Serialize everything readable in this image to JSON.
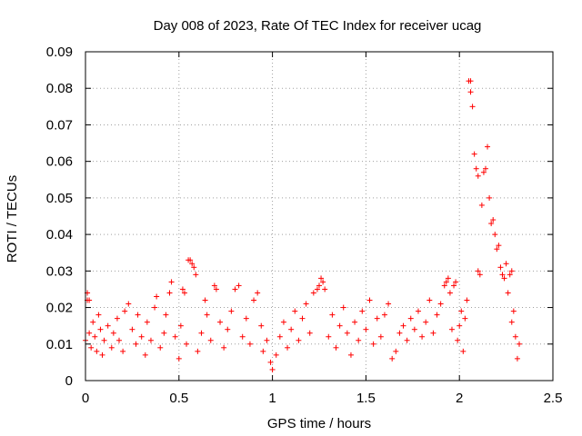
{
  "chart_data": {
    "type": "scatter",
    "title": "Day 008 of 2023, Rate Of TEC Index for receiver ucag",
    "xlabel": "GPS time / hours",
    "ylabel": "ROTI / TECUs",
    "xlim": [
      0,
      2.5
    ],
    "ylim": [
      0,
      0.09
    ],
    "x_ticks": [
      "0",
      "0.5",
      "1",
      "1.5",
      "2",
      "2.5"
    ],
    "y_ticks": [
      "0",
      "0.01",
      "0.02",
      "0.03",
      "0.04",
      "0.05",
      "0.06",
      "0.07",
      "0.08",
      "0.09"
    ],
    "grid": true,
    "marker": "+",
    "color": "#ff0000",
    "series": [
      {
        "name": "ROTI",
        "points": [
          [
            0.0,
            0.011
          ],
          [
            0.01,
            0.022
          ],
          [
            0.01,
            0.024
          ],
          [
            0.02,
            0.022
          ],
          [
            0.02,
            0.013
          ],
          [
            0.03,
            0.009
          ],
          [
            0.04,
            0.016
          ],
          [
            0.05,
            0.012
          ],
          [
            0.06,
            0.008
          ],
          [
            0.07,
            0.018
          ],
          [
            0.08,
            0.014
          ],
          [
            0.09,
            0.007
          ],
          [
            0.1,
            0.011
          ],
          [
            0.12,
            0.015
          ],
          [
            0.14,
            0.009
          ],
          [
            0.15,
            0.013
          ],
          [
            0.17,
            0.017
          ],
          [
            0.18,
            0.011
          ],
          [
            0.2,
            0.008
          ],
          [
            0.21,
            0.019
          ],
          [
            0.23,
            0.021
          ],
          [
            0.25,
            0.014
          ],
          [
            0.27,
            0.01
          ],
          [
            0.28,
            0.018
          ],
          [
            0.3,
            0.012
          ],
          [
            0.32,
            0.007
          ],
          [
            0.33,
            0.016
          ],
          [
            0.35,
            0.011
          ],
          [
            0.37,
            0.02
          ],
          [
            0.38,
            0.023
          ],
          [
            0.4,
            0.009
          ],
          [
            0.42,
            0.013
          ],
          [
            0.43,
            0.018
          ],
          [
            0.45,
            0.024
          ],
          [
            0.46,
            0.027
          ],
          [
            0.48,
            0.012
          ],
          [
            0.5,
            0.006
          ],
          [
            0.51,
            0.015
          ],
          [
            0.52,
            0.025
          ],
          [
            0.53,
            0.024
          ],
          [
            0.54,
            0.01
          ],
          [
            0.55,
            0.033
          ],
          [
            0.56,
            0.033
          ],
          [
            0.57,
            0.032
          ],
          [
            0.58,
            0.031
          ],
          [
            0.59,
            0.029
          ],
          [
            0.6,
            0.008
          ],
          [
            0.62,
            0.013
          ],
          [
            0.64,
            0.022
          ],
          [
            0.65,
            0.018
          ],
          [
            0.67,
            0.011
          ],
          [
            0.69,
            0.026
          ],
          [
            0.7,
            0.025
          ],
          [
            0.72,
            0.016
          ],
          [
            0.74,
            0.009
          ],
          [
            0.76,
            0.014
          ],
          [
            0.78,
            0.019
          ],
          [
            0.8,
            0.025
          ],
          [
            0.82,
            0.026
          ],
          [
            0.84,
            0.012
          ],
          [
            0.86,
            0.017
          ],
          [
            0.88,
            0.01
          ],
          [
            0.9,
            0.022
          ],
          [
            0.92,
            0.024
          ],
          [
            0.94,
            0.015
          ],
          [
            0.95,
            0.008
          ],
          [
            0.97,
            0.011
          ],
          [
            0.99,
            0.005
          ],
          [
            1.0,
            0.003
          ],
          [
            1.02,
            0.007
          ],
          [
            1.04,
            0.012
          ],
          [
            1.06,
            0.016
          ],
          [
            1.08,
            0.009
          ],
          [
            1.1,
            0.014
          ],
          [
            1.12,
            0.019
          ],
          [
            1.14,
            0.011
          ],
          [
            1.16,
            0.017
          ],
          [
            1.18,
            0.021
          ],
          [
            1.2,
            0.013
          ],
          [
            1.22,
            0.024
          ],
          [
            1.24,
            0.025
          ],
          [
            1.25,
            0.026
          ],
          [
            1.26,
            0.028
          ],
          [
            1.27,
            0.027
          ],
          [
            1.28,
            0.025
          ],
          [
            1.3,
            0.012
          ],
          [
            1.32,
            0.018
          ],
          [
            1.34,
            0.009
          ],
          [
            1.36,
            0.015
          ],
          [
            1.38,
            0.02
          ],
          [
            1.4,
            0.013
          ],
          [
            1.42,
            0.007
          ],
          [
            1.44,
            0.016
          ],
          [
            1.46,
            0.011
          ],
          [
            1.48,
            0.019
          ],
          [
            1.5,
            0.014
          ],
          [
            1.52,
            0.022
          ],
          [
            1.54,
            0.01
          ],
          [
            1.56,
            0.017
          ],
          [
            1.58,
            0.012
          ],
          [
            1.6,
            0.018
          ],
          [
            1.62,
            0.021
          ],
          [
            1.64,
            0.006
          ],
          [
            1.66,
            0.008
          ],
          [
            1.68,
            0.013
          ],
          [
            1.7,
            0.015
          ],
          [
            1.72,
            0.011
          ],
          [
            1.74,
            0.017
          ],
          [
            1.76,
            0.014
          ],
          [
            1.78,
            0.019
          ],
          [
            1.8,
            0.012
          ],
          [
            1.82,
            0.016
          ],
          [
            1.84,
            0.022
          ],
          [
            1.86,
            0.013
          ],
          [
            1.88,
            0.018
          ],
          [
            1.9,
            0.021
          ],
          [
            1.92,
            0.026
          ],
          [
            1.93,
            0.027
          ],
          [
            1.94,
            0.028
          ],
          [
            1.95,
            0.024
          ],
          [
            1.96,
            0.014
          ],
          [
            1.97,
            0.026
          ],
          [
            1.98,
            0.027
          ],
          [
            1.99,
            0.011
          ],
          [
            2.0,
            0.015
          ],
          [
            2.01,
            0.019
          ],
          [
            2.02,
            0.008
          ],
          [
            2.03,
            0.017
          ],
          [
            2.04,
            0.022
          ],
          [
            2.05,
            0.082
          ],
          [
            2.06,
            0.079
          ],
          [
            2.06,
            0.082
          ],
          [
            2.07,
            0.075
          ],
          [
            2.08,
            0.062
          ],
          [
            2.09,
            0.058
          ],
          [
            2.1,
            0.056
          ],
          [
            2.1,
            0.03
          ],
          [
            2.11,
            0.029
          ],
          [
            2.12,
            0.048
          ],
          [
            2.13,
            0.057
          ],
          [
            2.14,
            0.058
          ],
          [
            2.15,
            0.064
          ],
          [
            2.16,
            0.05
          ],
          [
            2.17,
            0.043
          ],
          [
            2.18,
            0.044
          ],
          [
            2.19,
            0.04
          ],
          [
            2.2,
            0.036
          ],
          [
            2.21,
            0.037
          ],
          [
            2.22,
            0.031
          ],
          [
            2.23,
            0.029
          ],
          [
            2.24,
            0.028
          ],
          [
            2.25,
            0.032
          ],
          [
            2.26,
            0.024
          ],
          [
            2.27,
            0.029
          ],
          [
            2.28,
            0.03
          ],
          [
            2.28,
            0.016
          ],
          [
            2.29,
            0.019
          ],
          [
            2.3,
            0.012
          ],
          [
            2.31,
            0.006
          ],
          [
            2.32,
            0.01
          ]
        ]
      }
    ]
  }
}
